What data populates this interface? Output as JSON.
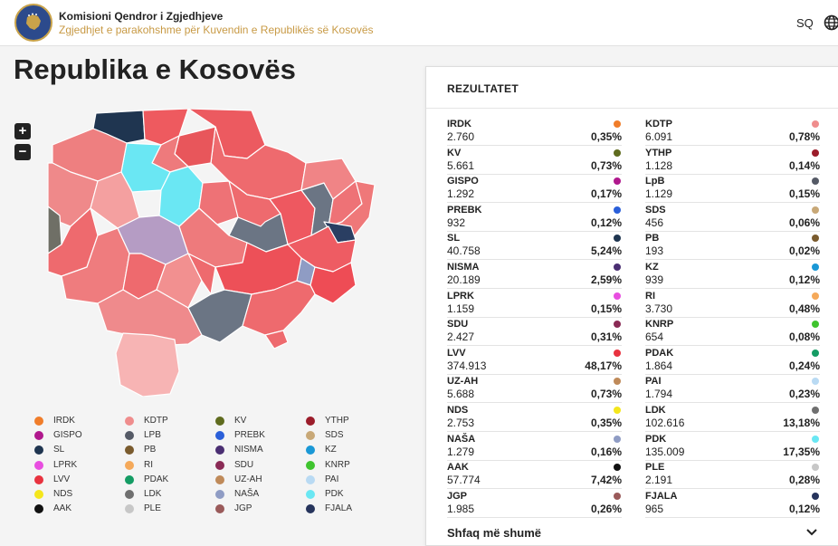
{
  "header": {
    "org_name": "Komisioni Qendror i Zgjedhjeve",
    "subtitle": "Zgjedhjet e parakohshme për Kuvendin e Republikës së Kosovës",
    "lang": "SQ",
    "logo_icon": "kosovo-map-logo",
    "globe_icon": "globe-icon"
  },
  "page": {
    "title": "Republika e Kosovës",
    "zoom_in": "+",
    "zoom_out": "−"
  },
  "legend": [
    {
      "label": "IRDK",
      "color": "#f07d2a"
    },
    {
      "label": "KDTP",
      "color": "#ef8d8d"
    },
    {
      "label": "KV",
      "color": "#5f6b1e"
    },
    {
      "label": "YTHP",
      "color": "#9b1c2a"
    },
    {
      "label": "GISPO",
      "color": "#b0188d"
    },
    {
      "label": "LPB",
      "color": "#555a66"
    },
    {
      "label": "PREBK",
      "color": "#2a5fd9"
    },
    {
      "label": "SDS",
      "color": "#c8a877"
    },
    {
      "label": "SL",
      "color": "#1f3550"
    },
    {
      "label": "PB",
      "color": "#7a5b2e"
    },
    {
      "label": "NISMA",
      "color": "#4a2e72"
    },
    {
      "label": "KZ",
      "color": "#1a98d6"
    },
    {
      "label": "LPRK",
      "color": "#e84ee0"
    },
    {
      "label": "RI",
      "color": "#f5a95a"
    },
    {
      "label": "SDU",
      "color": "#8a2a55"
    },
    {
      "label": "KNRP",
      "color": "#3fc42e"
    },
    {
      "label": "LVV",
      "color": "#e8323f"
    },
    {
      "label": "PDAK",
      "color": "#149c64"
    },
    {
      "label": "UZ-AH",
      "color": "#bf8a59"
    },
    {
      "label": "PAI",
      "color": "#b9daf3"
    },
    {
      "label": "NDS",
      "color": "#f4e61c"
    },
    {
      "label": "LDK",
      "color": "#6f6f6f"
    },
    {
      "label": "NAŠA",
      "color": "#8f9cc4"
    },
    {
      "label": "PDK",
      "color": "#6ae7f3"
    },
    {
      "label": "AAK",
      "color": "#111111"
    },
    {
      "label": "PLE",
      "color": "#c7c7c7"
    },
    {
      "label": "JGP",
      "color": "#9a5a5a"
    },
    {
      "label": "FJALA",
      "color": "#26345c"
    }
  ],
  "results": {
    "title": "REZULTATET",
    "show_more": "Shfaq më shumë",
    "left": [
      {
        "name": "IRDK",
        "votes": "2.760",
        "pct": "0,35%",
        "color": "#f07d2a"
      },
      {
        "name": "KV",
        "votes": "5.661",
        "pct": "0,73%",
        "color": "#5f6b1e"
      },
      {
        "name": "GISPO",
        "votes": "1.292",
        "pct": "0,17%",
        "color": "#b0188d"
      },
      {
        "name": "PREBK",
        "votes": "932",
        "pct": "0,12%",
        "color": "#2a5fd9"
      },
      {
        "name": "SL",
        "votes": "40.758",
        "pct": "5,24%",
        "color": "#1f3550"
      },
      {
        "name": "NISMA",
        "votes": "20.189",
        "pct": "2,59%",
        "color": "#4a2e72"
      },
      {
        "name": "LPRK",
        "votes": "1.159",
        "pct": "0,15%",
        "color": "#e84ee0"
      },
      {
        "name": "SDU",
        "votes": "2.427",
        "pct": "0,31%",
        "color": "#8a2a55"
      },
      {
        "name": "LVV",
        "votes": "374.913",
        "pct": "48,17%",
        "color": "#e8323f"
      },
      {
        "name": "UZ-AH",
        "votes": "5.688",
        "pct": "0,73%",
        "color": "#bf8a59"
      },
      {
        "name": "NDS",
        "votes": "2.753",
        "pct": "0,35%",
        "color": "#f4e61c"
      },
      {
        "name": "NAŠA",
        "votes": "1.279",
        "pct": "0,16%",
        "color": "#8f9cc4"
      },
      {
        "name": "AAK",
        "votes": "57.774",
        "pct": "7,42%",
        "color": "#111111"
      },
      {
        "name": "JGP",
        "votes": "1.985",
        "pct": "0,26%",
        "color": "#9a5a5a"
      }
    ],
    "right": [
      {
        "name": "KDTP",
        "votes": "6.091",
        "pct": "0,78%",
        "color": "#ef8d8d"
      },
      {
        "name": "YTHP",
        "votes": "1.128",
        "pct": "0,14%",
        "color": "#9b1c2a"
      },
      {
        "name": "LpB",
        "votes": "1.129",
        "pct": "0,15%",
        "color": "#555a66"
      },
      {
        "name": "SDS",
        "votes": "456",
        "pct": "0,06%",
        "color": "#c8a877"
      },
      {
        "name": "PB",
        "votes": "193",
        "pct": "0,02%",
        "color": "#7a5b2e"
      },
      {
        "name": "KZ",
        "votes": "939",
        "pct": "0,12%",
        "color": "#1a98d6"
      },
      {
        "name": "RI",
        "votes": "3.730",
        "pct": "0,48%",
        "color": "#f5a95a"
      },
      {
        "name": "KNRP",
        "votes": "654",
        "pct": "0,08%",
        "color": "#3fc42e"
      },
      {
        "name": "PDAK",
        "votes": "1.864",
        "pct": "0,24%",
        "color": "#149c64"
      },
      {
        "name": "PAI",
        "votes": "1.794",
        "pct": "0,23%",
        "color": "#b9daf3"
      },
      {
        "name": "LDK",
        "votes": "102.616",
        "pct": "13,18%",
        "color": "#6f6f6f"
      },
      {
        "name": "PDK",
        "votes": "135.009",
        "pct": "17,35%",
        "color": "#6ae7f3"
      },
      {
        "name": "PLE",
        "votes": "2.191",
        "pct": "0,28%",
        "color": "#c7c7c7"
      },
      {
        "name": "FJALA",
        "votes": "965",
        "pct": "0,12%",
        "color": "#26345c"
      }
    ]
  }
}
